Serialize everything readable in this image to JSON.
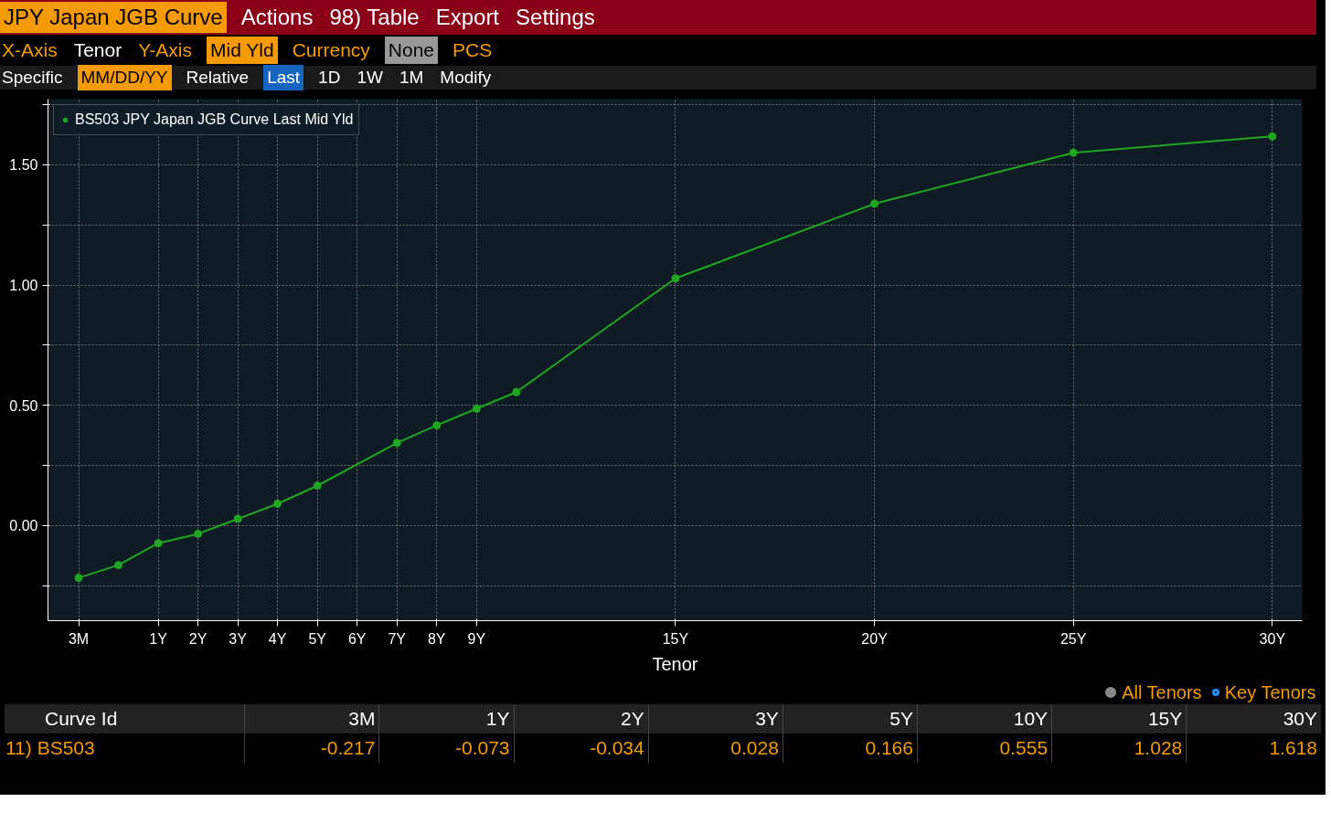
{
  "chart_data": {
    "type": "line",
    "title": "JPY Japan JGB Curve",
    "xlabel": "Tenor",
    "categories": [
      "3M",
      null,
      "1Y",
      "2Y",
      "3Y",
      "4Y",
      "5Y",
      "6Y",
      "7Y",
      "8Y",
      "9Y",
      null,
      null,
      null,
      null,
      "15Y",
      null,
      null,
      null,
      null,
      "20Y",
      null,
      null,
      null,
      null,
      "25Y",
      null,
      null,
      null,
      null,
      "30Y"
    ],
    "series": [
      {
        "name": "BS503 JPY Japan JGB Curve Last Mid Yld",
        "color": "#1fa81f",
        "values": [
          -0.217,
          -0.164,
          -0.073,
          -0.034,
          0.028,
          0.091,
          0.166,
          null,
          0.344,
          0.417,
          0.486,
          0.555,
          null,
          null,
          null,
          1.028,
          null,
          null,
          null,
          null,
          1.338,
          null,
          null,
          null,
          null,
          1.55,
          null,
          null,
          null,
          null,
          1.618
        ]
      }
    ],
    "ylim": [
      -0.395,
      1.773
    ],
    "yticks": [
      {
        "value": -0.25,
        "label": null
      },
      "0.00",
      {
        "value": 0.25,
        "label": null
      },
      {
        "value": 0.5,
        "label": "0.50"
      },
      {
        "value": 0.75,
        "label": null
      },
      {
        "value": 1.0,
        "label": "1.00"
      },
      {
        "value": 1.25,
        "label": null
      },
      {
        "value": 1.5,
        "label": "1.50"
      },
      {
        "value": 1.75,
        "label": null
      }
    ],
    "grid": true,
    "legend": "top left",
    "marker": "circle",
    "line_style": "solid",
    "annotations": [
      "Actions",
      "98) Table",
      "Export",
      "Settings",
      "X-Axis",
      "Tenor",
      "Y-Axis",
      "Mid Yld",
      "Currency",
      "None",
      "PCS",
      "Specific",
      "MM/DD/YY",
      "Relative",
      "Last",
      "1D",
      "1W",
      "1M",
      "Modify",
      "All Tenors",
      "Key Tenors",
      "Curve Id",
      "11) BS503",
      "3M",
      "-0.217",
      "1Y",
      "-0.073",
      "2Y",
      "-0.034",
      "3Y",
      "0.028",
      "5Y",
      "0.166",
      "10Y",
      "0.555",
      "15Y",
      "1.028",
      "30Y",
      "1.618"
    ]
  }
}
